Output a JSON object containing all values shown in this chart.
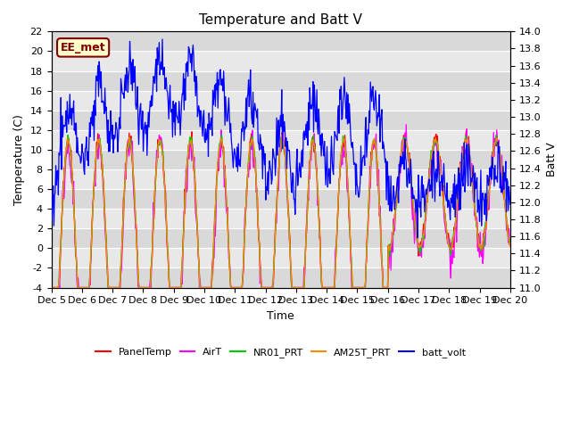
{
  "title": "Temperature and Batt V",
  "xlabel": "Time",
  "ylabel_left": "Temperature (C)",
  "ylabel_right": "Batt V",
  "ylim_left": [
    -4,
    22
  ],
  "ylim_right": [
    11.0,
    14.0
  ],
  "yticks_left": [
    -4,
    -2,
    0,
    2,
    4,
    6,
    8,
    10,
    12,
    14,
    16,
    18,
    20,
    22
  ],
  "yticks_right": [
    11.0,
    11.2,
    11.4,
    11.6,
    11.8,
    12.0,
    12.2,
    12.4,
    12.6,
    12.8,
    13.0,
    13.2,
    13.4,
    13.6,
    13.8,
    14.0
  ],
  "xtick_positions": [
    0,
    1,
    2,
    3,
    4,
    5,
    6,
    7,
    8,
    9,
    10,
    11,
    12,
    13,
    14,
    15
  ],
  "xtick_labels": [
    "Dec 5",
    "Dec 6",
    "Dec 7",
    "Dec 8",
    "Dec 9",
    "Dec 10",
    "Dec 11",
    "Dec 12",
    "Dec 13",
    "Dec 14",
    "Dec 15",
    "Dec 16",
    "Dec 17",
    "Dec 18",
    "Dec 19",
    "Dec 20"
  ],
  "series_colors": {
    "PanelTemp": "#ff0000",
    "AirT": "#ff00ff",
    "NR01_PRT": "#00cc00",
    "AM25T_PRT": "#ff8800",
    "batt_volt": "#0000ff"
  },
  "legend_labels": [
    "PanelTemp",
    "AirT",
    "NR01_PRT",
    "AM25T_PRT",
    "batt_volt"
  ],
  "annotation_text": "EE_met",
  "annotation_color": "#800000",
  "annotation_bg": "#ffffcc",
  "plot_bg": "#e8e8e8",
  "title_fontsize": 11,
  "axis_fontsize": 9,
  "tick_fontsize": 8
}
